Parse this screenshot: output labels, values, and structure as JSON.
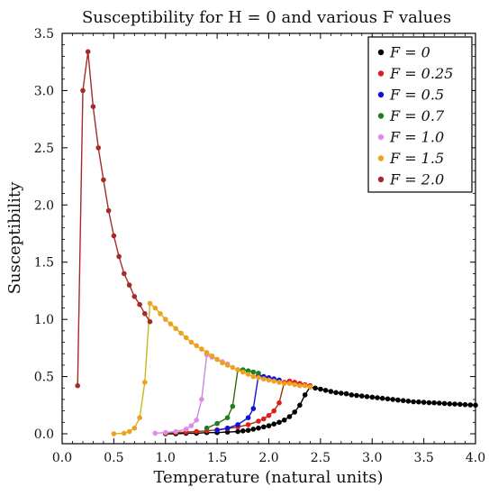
{
  "chart_data": {
    "type": "line",
    "title": "Susceptibility for H = 0 and various F values",
    "xlabel": "Temperature (natural units)",
    "ylabel": "Susceptibility",
    "xlim": [
      0,
      4.0
    ],
    "ylim": [
      -0.05,
      3.5
    ],
    "x_ticks": [
      "0.0",
      "0.5",
      "1.0",
      "1.5",
      "2.0",
      "2.5",
      "3.0",
      "3.5",
      "4.0"
    ],
    "y_ticks": [
      "0.0",
      "0.5",
      "1.0",
      "1.5",
      "2.0",
      "2.5",
      "3.0",
      "3.5"
    ],
    "legend_position": "top-right",
    "grid": false,
    "series": [
      {
        "name": "F = 0",
        "color": "#000000",
        "line_color": "#000000",
        "x": [
          1.0,
          1.1,
          1.2,
          1.3,
          1.4,
          1.5,
          1.6,
          1.7,
          1.75,
          1.8,
          1.85,
          1.9,
          1.95,
          2.0,
          2.05,
          2.1,
          2.15,
          2.2,
          2.25,
          2.3,
          2.35,
          2.4,
          2.45,
          2.5,
          2.55,
          2.6,
          2.65,
          2.7,
          2.75,
          2.8,
          2.85,
          2.9,
          2.95,
          3.0,
          3.05,
          3.1,
          3.15,
          3.2,
          3.25,
          3.3,
          3.35,
          3.4,
          3.45,
          3.5,
          3.55,
          3.6,
          3.65,
          3.7,
          3.75,
          3.8,
          3.85,
          3.9,
          3.95,
          4.0
        ],
        "y": [
          0.0,
          0.0,
          0.005,
          0.005,
          0.01,
          0.01,
          0.015,
          0.02,
          0.025,
          0.03,
          0.04,
          0.05,
          0.06,
          0.07,
          0.085,
          0.1,
          0.12,
          0.15,
          0.19,
          0.25,
          0.34,
          0.41,
          0.4,
          0.39,
          0.38,
          0.37,
          0.36,
          0.355,
          0.35,
          0.34,
          0.335,
          0.33,
          0.325,
          0.32,
          0.315,
          0.31,
          0.305,
          0.3,
          0.295,
          0.29,
          0.285,
          0.28,
          0.278,
          0.275,
          0.272,
          0.27,
          0.268,
          0.265,
          0.262,
          0.26,
          0.258,
          0.255,
          0.252,
          0.25
        ]
      },
      {
        "name": "F = 0.25",
        "color": "#e41a1c",
        "line_color": "#8b3a0e",
        "x": [
          1.0,
          1.1,
          1.2,
          1.3,
          1.4,
          1.5,
          1.6,
          1.7,
          1.8,
          1.9,
          1.95,
          2.0,
          2.05,
          2.1,
          2.15,
          2.2,
          2.25,
          2.3,
          2.35,
          2.4
        ],
        "y": [
          0.005,
          0.01,
          0.015,
          0.02,
          0.025,
          0.035,
          0.045,
          0.06,
          0.08,
          0.11,
          0.13,
          0.16,
          0.2,
          0.27,
          0.45,
          0.46,
          0.45,
          0.44,
          0.43,
          0.42
        ]
      },
      {
        "name": "F = 0.5",
        "color": "#1010dd",
        "line_color": "#1010dd",
        "x": [
          1.5,
          1.6,
          1.7,
          1.8,
          1.85,
          1.9,
          1.95,
          2.0,
          2.05,
          2.1
        ],
        "y": [
          0.03,
          0.05,
          0.08,
          0.14,
          0.22,
          0.51,
          0.5,
          0.49,
          0.48,
          0.47
        ]
      },
      {
        "name": "F = 0.7",
        "color": "#1f7f1f",
        "line_color": "#2e6b12",
        "x": [
          1.4,
          1.5,
          1.6,
          1.65,
          1.7,
          1.75,
          1.8,
          1.85,
          1.9
        ],
        "y": [
          0.05,
          0.09,
          0.14,
          0.24,
          0.56,
          0.56,
          0.55,
          0.54,
          0.53
        ]
      },
      {
        "name": "F = 1.0",
        "color": "#e38ae8",
        "line_color": "#c68ae0",
        "x": [
          0.9,
          1.0,
          1.1,
          1.2,
          1.25,
          1.3,
          1.35,
          1.4,
          1.45,
          1.5,
          1.55,
          1.6
        ],
        "y": [
          0.005,
          0.01,
          0.02,
          0.04,
          0.07,
          0.12,
          0.3,
          0.69,
          0.67,
          0.65,
          0.63,
          0.61
        ]
      },
      {
        "name": "F = 1.5",
        "color": "#f0a020",
        "line_color": "#c8b820",
        "x": [
          0.5,
          0.6,
          0.65,
          0.7,
          0.75,
          0.8,
          0.85,
          0.9,
          0.95,
          1.0,
          1.05,
          1.1,
          1.15,
          1.2,
          1.25,
          1.3,
          1.35,
          1.4,
          1.45,
          1.5,
          1.55,
          1.6,
          1.65,
          1.7,
          1.75,
          1.8,
          1.85,
          1.9,
          1.95,
          2.0,
          2.05,
          2.1,
          2.15,
          2.2,
          2.25,
          2.3,
          2.35,
          2.4
        ],
        "y": [
          0.0,
          0.005,
          0.02,
          0.05,
          0.14,
          0.45,
          1.14,
          1.1,
          1.05,
          1.0,
          0.96,
          0.92,
          0.88,
          0.84,
          0.8,
          0.77,
          0.74,
          0.71,
          0.68,
          0.65,
          0.62,
          0.6,
          0.58,
          0.56,
          0.54,
          0.52,
          0.5,
          0.49,
          0.48,
          0.47,
          0.46,
          0.45,
          0.44,
          0.44,
          0.43,
          0.42,
          0.42,
          0.41
        ]
      },
      {
        "name": "F = 2.0",
        "color": "#a52a2a",
        "line_color": "#a52a2a",
        "x": [
          0.15,
          0.2,
          0.25,
          0.3,
          0.35,
          0.4,
          0.45,
          0.5,
          0.55,
          0.6,
          0.65,
          0.7,
          0.75,
          0.8,
          0.85
        ],
        "y": [
          0.42,
          3.0,
          3.34,
          2.86,
          2.5,
          2.22,
          1.95,
          1.73,
          1.55,
          1.4,
          1.3,
          1.2,
          1.13,
          1.05,
          0.98
        ]
      }
    ]
  },
  "legend": {
    "items": [
      "F = 0",
      "F = 0.25",
      "F = 0.5",
      "F = 0.7",
      "F = 1.0",
      "F = 1.5",
      "F = 2.0"
    ]
  }
}
